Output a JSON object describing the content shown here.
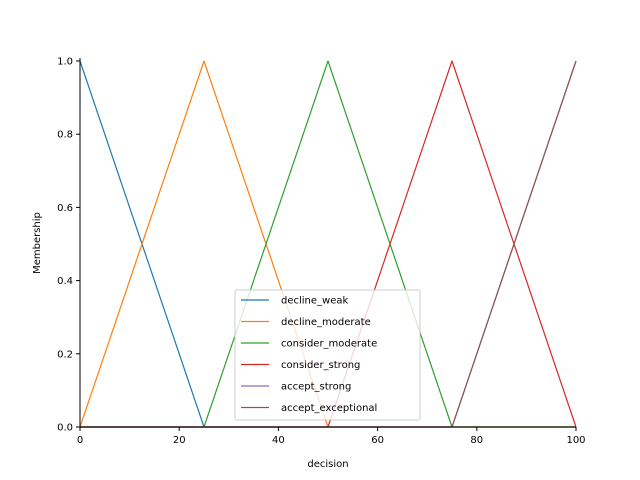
{
  "chart_data": {
    "type": "line",
    "title": "",
    "xlabel": "decision",
    "ylabel": "Membership",
    "xlim": [
      0,
      100
    ],
    "ylim": [
      0,
      1.0
    ],
    "xticks": [
      "0",
      "20",
      "40",
      "60",
      "80",
      "100"
    ],
    "yticks": [
      "0.0",
      "0.2",
      "0.4",
      "0.6",
      "0.8",
      "1.0"
    ],
    "grid": false,
    "legend_position": "bottom-center",
    "series": [
      {
        "name": "decline_weak",
        "color": "#1f77b4",
        "x": [
          0,
          0,
          25,
          100
        ],
        "y": [
          1,
          1,
          0,
          0
        ]
      },
      {
        "name": "decline_moderate",
        "color": "#ff7f0e",
        "x": [
          0,
          25,
          50,
          100
        ],
        "y": [
          0,
          1,
          0,
          0
        ]
      },
      {
        "name": "consider_moderate",
        "color": "#2ca02c",
        "x": [
          0,
          25,
          50,
          75,
          100
        ],
        "y": [
          0,
          0,
          1,
          0,
          0
        ]
      },
      {
        "name": "consider_strong",
        "color": "#d62728",
        "x": [
          0,
          50,
          75,
          100
        ],
        "y": [
          0,
          0,
          1,
          0
        ]
      },
      {
        "name": "accept_strong",
        "color": "#9467bd",
        "x": [
          0,
          75,
          100,
          100
        ],
        "y": [
          0,
          0,
          1,
          1
        ]
      },
      {
        "name": "accept_exceptional",
        "color": "#8c564b",
        "x": [
          0,
          75,
          100,
          100
        ],
        "y": [
          0,
          0,
          1,
          1
        ]
      }
    ]
  }
}
